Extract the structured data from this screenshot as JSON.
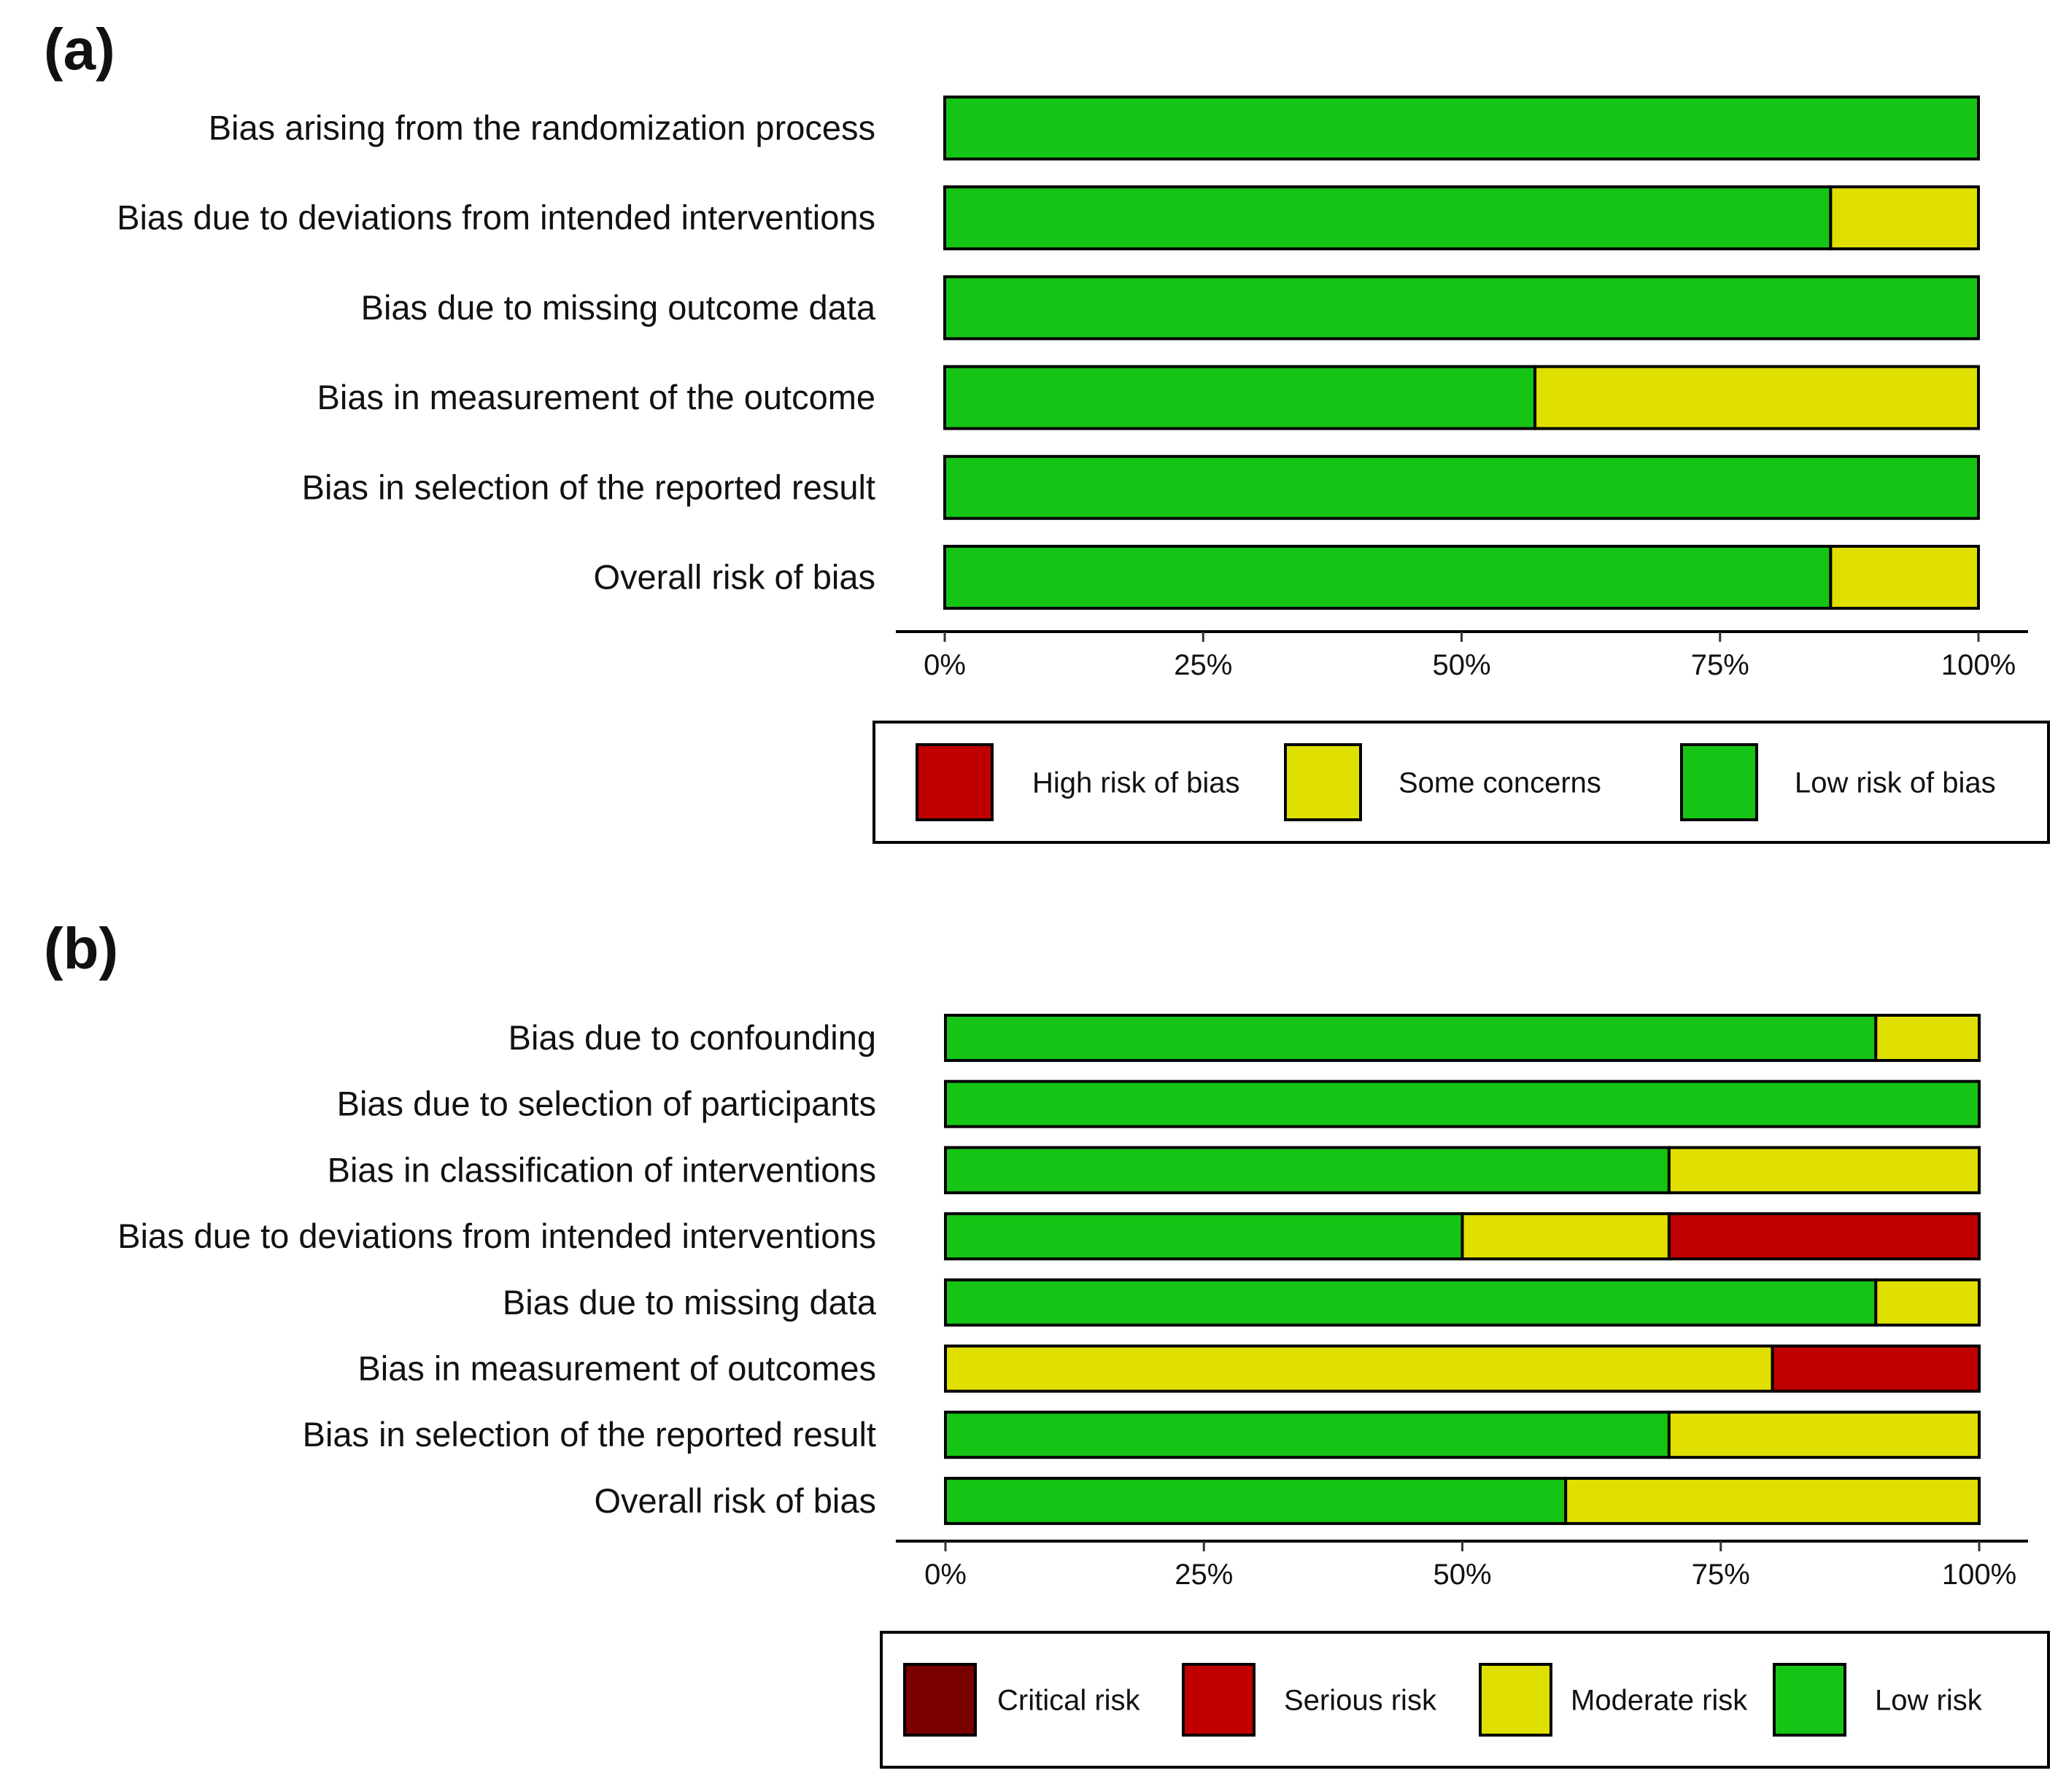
{
  "colors": {
    "high_risk": "#c00000",
    "critical_risk": "#7a0000",
    "some_concerns": "#e0e000",
    "low_risk": "#15c415",
    "outline": "#000000",
    "tick_text": "#444444"
  },
  "chart_data": [
    {
      "type": "bar",
      "orientation": "horizontal",
      "stacked": true,
      "panel_label": "(a)",
      "categories": [
        "Bias arising from the randomization process",
        "Bias due to deviations from intended interventions",
        "Bias due to missing outcome data",
        "Bias in measurement of the outcome",
        "Bias in selection of the reported result",
        "Overall risk of bias"
      ],
      "series": [
        {
          "name": "Low risk of bias",
          "color": "#15c415",
          "values": [
            100,
            85.7,
            100,
            57.1,
            100,
            85.7
          ]
        },
        {
          "name": "Some concerns",
          "color": "#e0e000",
          "values": [
            0,
            14.3,
            0,
            42.9,
            0,
            14.3
          ]
        },
        {
          "name": "High risk of bias",
          "color": "#c00000",
          "values": [
            0,
            0,
            0,
            0,
            0,
            0
          ]
        }
      ],
      "xlim": [
        0,
        100
      ],
      "xticks": [
        "0%",
        "25%",
        "50%",
        "75%",
        "100%"
      ],
      "legend": {
        "position": "bottom",
        "entries": [
          {
            "label": "High risk of bias",
            "color": "#c00000"
          },
          {
            "label": "Some concerns",
            "color": "#e0e000"
          },
          {
            "label": "Low risk of bias",
            "color": "#15c415"
          }
        ]
      }
    },
    {
      "type": "bar",
      "orientation": "horizontal",
      "stacked": true,
      "panel_label": "(b)",
      "categories": [
        "Bias due to confounding",
        "Bias due to selection of participants",
        "Bias in classification of interventions",
        "Bias due to deviations from intended interventions",
        "Bias due to missing data",
        "Bias in measurement of outcomes",
        "Bias in selection of the reported result",
        "Overall risk of bias"
      ],
      "series": [
        {
          "name": "Low risk",
          "color": "#15c415",
          "values": [
            90,
            100,
            70,
            50,
            90,
            0,
            70,
            60
          ]
        },
        {
          "name": "Moderate risk",
          "color": "#e0e000",
          "values": [
            10,
            0,
            30,
            20,
            10,
            80,
            30,
            40
          ]
        },
        {
          "name": "Serious risk",
          "color": "#c00000",
          "values": [
            0,
            0,
            0,
            30,
            0,
            20,
            0,
            0
          ]
        },
        {
          "name": "Critical risk",
          "color": "#7a0000",
          "values": [
            0,
            0,
            0,
            0,
            0,
            0,
            0,
            0
          ]
        }
      ],
      "xlim": [
        0,
        100
      ],
      "xticks": [
        "0%",
        "25%",
        "50%",
        "75%",
        "100%"
      ],
      "legend": {
        "position": "bottom",
        "entries": [
          {
            "label": "Critical risk",
            "color": "#7a0000"
          },
          {
            "label": "Serious risk",
            "color": "#c00000"
          },
          {
            "label": "Moderate risk",
            "color": "#e0e000"
          },
          {
            "label": "Low risk",
            "color": "#15c415"
          }
        ]
      }
    }
  ]
}
